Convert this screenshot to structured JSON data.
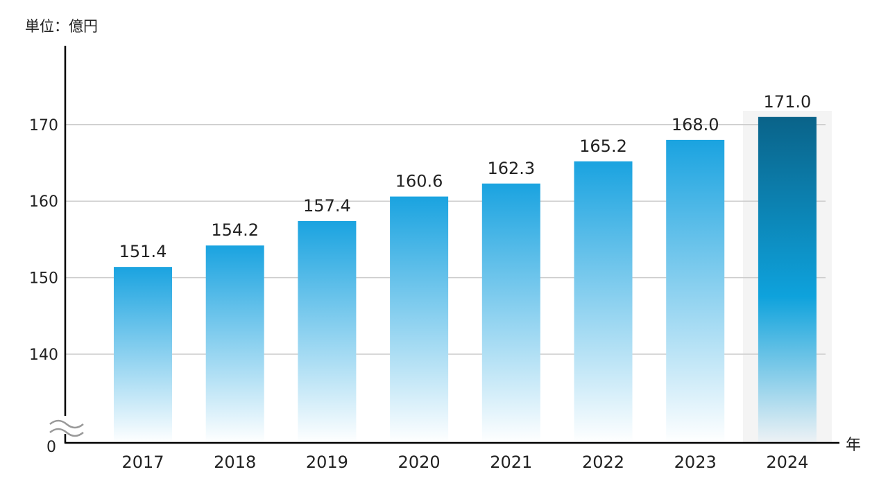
{
  "unit_label": "単位：億円",
  "chart_data": {
    "type": "bar",
    "categories": [
      "2017",
      "2018",
      "2019",
      "2020",
      "2021",
      "2022",
      "2023",
      "2024"
    ],
    "values": [
      151.4,
      154.2,
      157.4,
      160.6,
      162.3,
      165.2,
      168.0,
      171.0
    ],
    "value_labels": [
      "151.4",
      "154.2",
      "157.4",
      "160.6",
      "162.3",
      "165.2",
      "168.0",
      "171.0"
    ],
    "y_ticks": [
      "140",
      "150",
      "160",
      "170"
    ],
    "y_tick_values": [
      140,
      150,
      160,
      170
    ],
    "y_zero_label": "0",
    "y_axis_break": true,
    "ylim": [
      130,
      180
    ],
    "xlabel": "年",
    "ylabel": "",
    "title": "",
    "highlight_category": "2024",
    "grid": true,
    "colors": {
      "bar_top": "#1aa3e0",
      "bar_bottom": "#ffffff",
      "highlight_top": "#0a6389",
      "highlight_mid": "#0ea2dc",
      "highlight_bottom": "#eef2f5",
      "highlight_bg": "#f4f4f4",
      "gridline": "#cccccc",
      "axis": "#000000"
    }
  }
}
